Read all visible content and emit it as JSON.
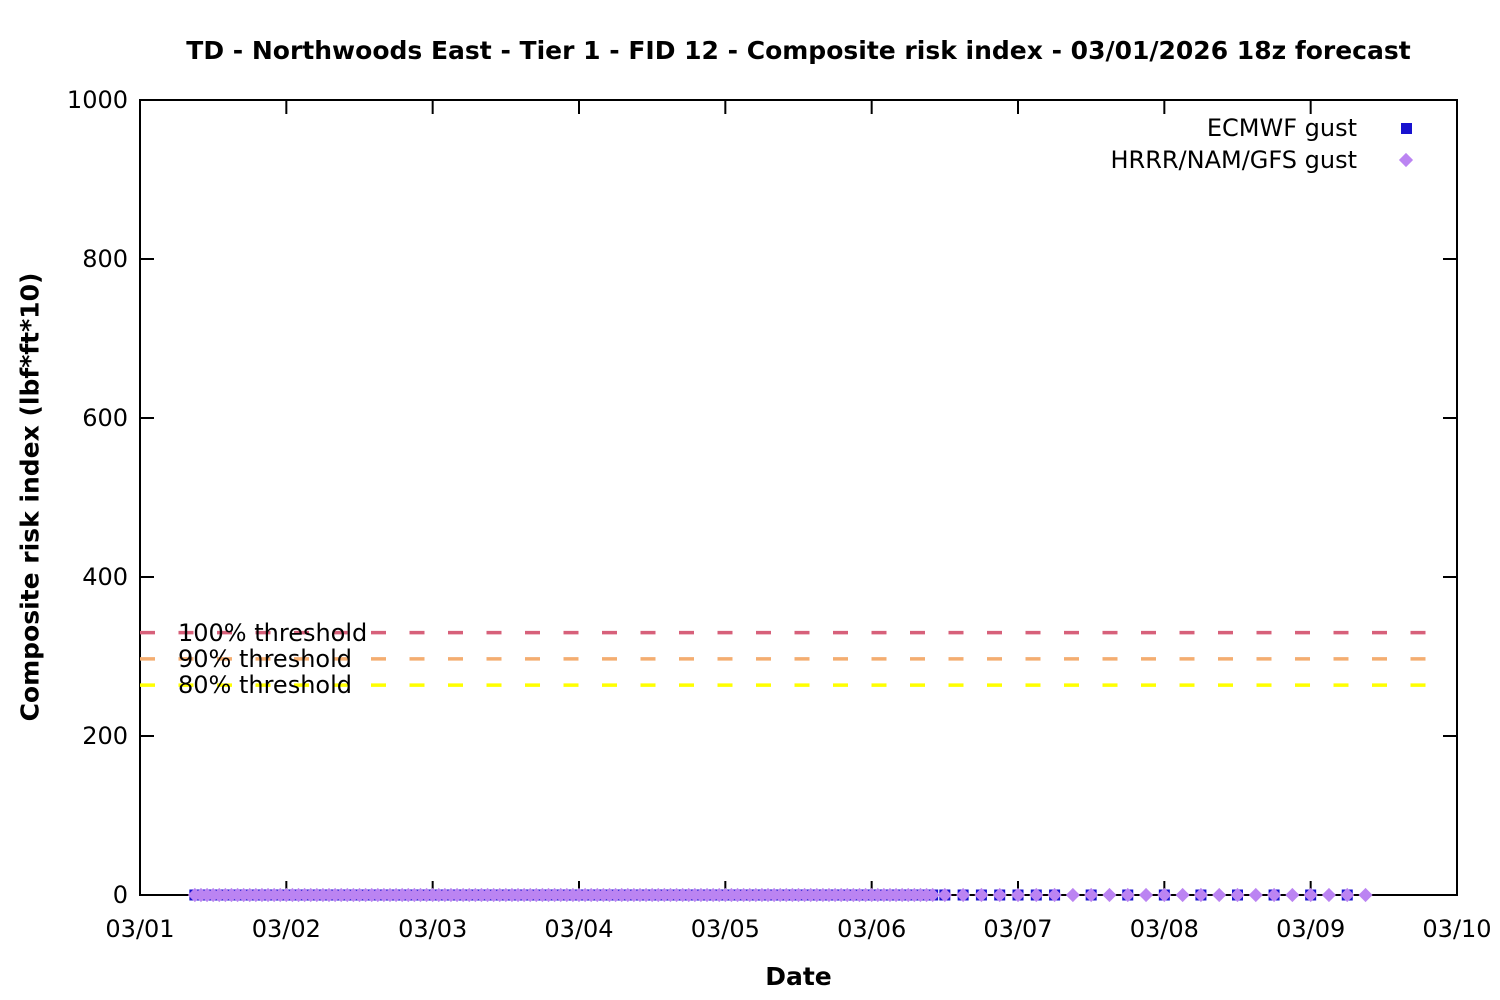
{
  "chart_data": {
    "type": "scatter",
    "title": "TD - Northwoods East - Tier 1 - FID 12 - Composite risk index - 03/01/2026 18z forecast",
    "xlabel": "Date",
    "ylabel": "Composite risk index (lbf*ft*10)",
    "x_ticks": [
      "03/01",
      "03/02",
      "03/03",
      "03/04",
      "03/05",
      "03/06",
      "03/07",
      "03/08",
      "03/09",
      "03/10"
    ],
    "x_range_days": [
      0,
      9
    ],
    "y_ticks": [
      0,
      200,
      400,
      600,
      800,
      1000
    ],
    "ylim": [
      0,
      1000
    ],
    "grid": false,
    "legend_position": "top-right-inside",
    "axis_color": "#000000",
    "thresholds": [
      {
        "label": "100% threshold",
        "value": 330,
        "color": "#d7607a"
      },
      {
        "label": "90% threshold",
        "value": 297,
        "color": "#f4ad70"
      },
      {
        "label": "80% threshold",
        "value": 264,
        "color": "#ffff00"
      }
    ],
    "series": [
      {
        "name": "ECMWF gust",
        "marker": "square",
        "color": "#1812cf",
        "y_value": 0,
        "segments_days_interval_hours": [
          [
            0.375,
            5.4167,
            1
          ],
          [
            5.5,
            6.125,
            3
          ],
          [
            6.25,
            8.25,
            6
          ]
        ]
      },
      {
        "name": "HRRR/NAM/GFS gust",
        "marker": "diamond",
        "color": "#bb84f2",
        "y_value": 0,
        "segments_days_interval_hours": [
          [
            0.375,
            5.4167,
            1
          ],
          [
            5.5,
            8.375,
            3
          ]
        ]
      }
    ]
  }
}
